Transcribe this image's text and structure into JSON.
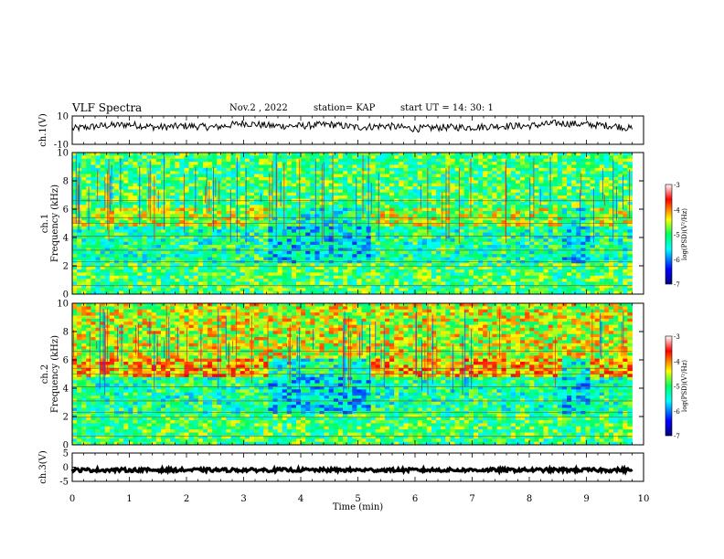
{
  "header": {
    "title": "VLF Spectra",
    "date": "Nov.2 , 2022",
    "station": "station= KAP",
    "start": "start UT = 14: 30: 1"
  },
  "colors": {
    "colormap": [
      "#000080",
      "#0000ff",
      "#00bfff",
      "#00ffff",
      "#00ff80",
      "#80ff00",
      "#ffff00",
      "#ff8000",
      "#ff0000",
      "#ffffff"
    ],
    "trace": "#000000"
  },
  "chart_data": [
    {
      "id": "ch1-voltage",
      "type": "line",
      "ylabel": "ch.1(V)",
      "ylim": [
        -10,
        10
      ],
      "yticks": [
        "10",
        "-10"
      ],
      "xlim": [
        0,
        10
      ],
      "series": [
        {
          "x": [
            0,
            0.5,
            1,
            1.5,
            2,
            2.5,
            3,
            3.5,
            4,
            4.5,
            5,
            5.5,
            6,
            6.5,
            7,
            7.5,
            8,
            8.5,
            9,
            9.5,
            9.8
          ],
          "values": [
            1,
            3,
            4,
            2,
            3,
            2,
            5,
            3,
            3,
            4,
            2,
            3,
            1,
            2,
            2,
            3,
            3,
            5,
            4,
            3,
            1
          ]
        }
      ]
    },
    {
      "id": "ch1-spectrogram",
      "type": "heatmap",
      "ylabel": "ch.1\nFrequency (kHz)",
      "xlim": [
        0,
        10
      ],
      "ylim": [
        0,
        10
      ],
      "yticks": [
        "0",
        "2",
        "4",
        "6",
        "8",
        "10"
      ],
      "colorbar": {
        "label": "log(PSD)(V²/Hz)",
        "range": [
          -7,
          -3
        ],
        "ticks": [
          "-3",
          "-4",
          "-5",
          "-6",
          "-7"
        ]
      },
      "quiet_intervals_min": [
        [
          3.45,
          5.2
        ],
        [
          8.55,
          9.05
        ]
      ]
    },
    {
      "id": "ch2-spectrogram",
      "type": "heatmap",
      "ylabel": "ch.2\nFrequency (kHz)",
      "xlim": [
        0,
        10
      ],
      "ylim": [
        0,
        10
      ],
      "yticks": [
        "0",
        "2",
        "4",
        "6",
        "8",
        "10"
      ],
      "colorbar": {
        "label": "log(PSD)(V²/Hz)",
        "range": [
          -7,
          -3
        ],
        "ticks": [
          "-3",
          "-4",
          "-5",
          "-6",
          "-7"
        ]
      },
      "quiet_intervals_min": [
        [
          3.45,
          5.2
        ],
        [
          8.55,
          9.05
        ]
      ]
    },
    {
      "id": "ch3-voltage",
      "type": "line",
      "ylabel": "ch.3(V)",
      "xlabel": "Time (min)",
      "ylim": [
        -5,
        5
      ],
      "yticks": [
        "5",
        "0",
        "-5"
      ],
      "xlim": [
        0,
        10
      ],
      "xticks": [
        "0",
        "1",
        "2",
        "3",
        "4",
        "5",
        "6",
        "7",
        "8",
        "9",
        "10"
      ],
      "series": [
        {
          "x": [
            0,
            9.8
          ],
          "values": [
            -1,
            -1
          ]
        }
      ]
    }
  ]
}
